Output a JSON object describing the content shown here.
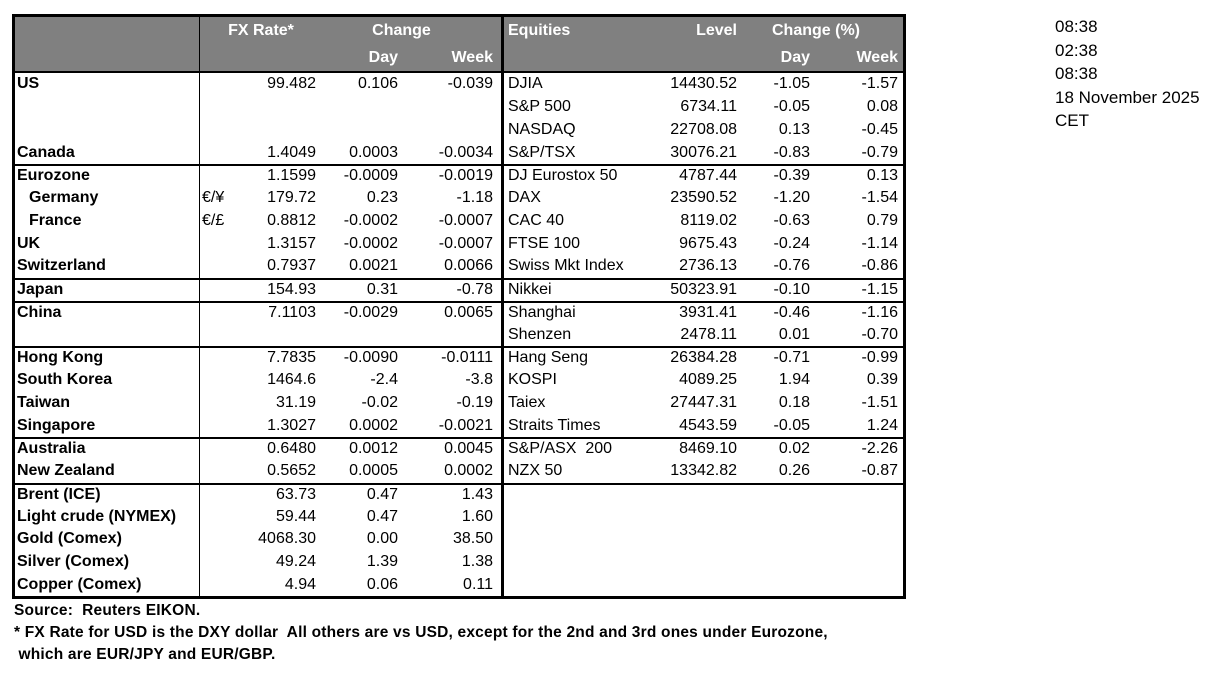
{
  "colors": {
    "header_bg": "#808080",
    "header_text": "#ffffff",
    "border": "#000000",
    "body_text": "#000000"
  },
  "header": {
    "fx_rate": "FX Rate*",
    "change": "Change",
    "day": "Day",
    "week": "Week",
    "equities": "Equities",
    "level": "Level",
    "change_pct": "Change (%)"
  },
  "rows": [
    {
      "label": "US",
      "sub": "",
      "rate": "99.482",
      "day": "0.106",
      "week": "-0.039",
      "eq": "DJIA",
      "level": "14430.52",
      "eqday": "-1.05",
      "eqweek": "-1.57"
    },
    {
      "label": "",
      "sub": "",
      "rate": "",
      "day": "",
      "week": "",
      "eq": "S&P 500",
      "level": "6734.11",
      "eqday": "-0.05",
      "eqweek": "0.08"
    },
    {
      "label": "",
      "sub": "",
      "rate": "",
      "day": "",
      "week": "",
      "eq": "NASDAQ",
      "level": "22708.08",
      "eqday": "0.13",
      "eqweek": "-0.45"
    },
    {
      "label": "Canada",
      "sub": "",
      "rate": "1.4049",
      "day": "0.0003",
      "week": "-0.0034",
      "eq": "S&P/TSX",
      "level": "30076.21",
      "eqday": "-0.83",
      "eqweek": "-0.79"
    },
    {
      "sep": true,
      "label": "Eurozone",
      "sub": "",
      "rate": "1.1599",
      "day": "-0.0009",
      "week": "-0.0019",
      "eq": "DJ Eurostox 50",
      "level": "4787.44",
      "eqday": "-0.39",
      "eqweek": "0.13"
    },
    {
      "indent": true,
      "label": "Germany",
      "sub": "€/¥",
      "rate": "179.72",
      "day": "0.23",
      "week": "-1.18",
      "eq": "DAX",
      "level": "23590.52",
      "eqday": "-1.20",
      "eqweek": "-1.54"
    },
    {
      "indent": true,
      "label": "France",
      "sub": "€/£",
      "rate": "0.8812",
      "day": "-0.0002",
      "week": "-0.0007",
      "eq": "CAC 40",
      "level": "8119.02",
      "eqday": "-0.63",
      "eqweek": "0.79"
    },
    {
      "label": "UK",
      "sub": "",
      "rate": "1.3157",
      "day": "-0.0002",
      "week": "-0.0007",
      "eq": "FTSE 100",
      "level": "9675.43",
      "eqday": "-0.24",
      "eqweek": "-1.14"
    },
    {
      "label": "Switzerland",
      "sub": "",
      "rate": "0.7937",
      "day": "0.0021",
      "week": "0.0066",
      "eq": "Swiss Mkt Index",
      "level": "2736.13",
      "eqday": "-0.76",
      "eqweek": "-0.86"
    },
    {
      "sep": true,
      "label": "Japan",
      "sub": "",
      "rate": "154.93",
      "day": "0.31",
      "week": "-0.78",
      "eq": "Nikkei",
      "level": "50323.91",
      "eqday": "-0.10",
      "eqweek": "-1.15"
    },
    {
      "sep": true,
      "label": "China",
      "sub": "",
      "rate": "7.1103",
      "day": "-0.0029",
      "week": "0.0065",
      "eq": "Shanghai",
      "level": "3931.41",
      "eqday": "-0.46",
      "eqweek": "-1.16"
    },
    {
      "label": "",
      "sub": "",
      "rate": "",
      "day": "",
      "week": "",
      "eq": "Shenzen",
      "level": "2478.11",
      "eqday": "0.01",
      "eqweek": "-0.70"
    },
    {
      "sep": true,
      "label": "Hong Kong",
      "sub": "",
      "rate": "7.7835",
      "day": "-0.0090",
      "week": "-0.0111",
      "eq": "Hang Seng",
      "level": "26384.28",
      "eqday": "-0.71",
      "eqweek": "-0.99"
    },
    {
      "label": "South Korea",
      "sub": "",
      "rate": "1464.6",
      "day": "-2.4",
      "week": "-3.8",
      "eq": "KOSPI",
      "level": "4089.25",
      "eqday": "1.94",
      "eqweek": "0.39"
    },
    {
      "label": "Taiwan",
      "sub": "",
      "rate": "31.19",
      "day": "-0.02",
      "week": "-0.19",
      "eq": "Taiex",
      "level": "27447.31",
      "eqday": "0.18",
      "eqweek": "-1.51"
    },
    {
      "label": "Singapore",
      "sub": "",
      "rate": "1.3027",
      "day": "0.0002",
      "week": "-0.0021",
      "eq": "Straits Times",
      "level": "4543.59",
      "eqday": "-0.05",
      "eqweek": "1.24"
    },
    {
      "sep": true,
      "label": "Australia",
      "sub": "",
      "rate": "0.6480",
      "day": "0.0012",
      "week": "0.0045",
      "eq": "S&P/ASX  200",
      "level": "8469.10",
      "eqday": "0.02",
      "eqweek": "-2.26"
    },
    {
      "label": "New Zealand",
      "sub": "",
      "rate": "0.5652",
      "day": "0.0005",
      "week": "0.0002",
      "eq": "NZX 50",
      "level": "13342.82",
      "eqday": "0.26",
      "eqweek": "-0.87"
    },
    {
      "sep": true,
      "label": "Brent (ICE)",
      "sub": "",
      "rate": "63.73",
      "day": "0.47",
      "week": "1.43",
      "eq": "",
      "level": "",
      "eqday": "",
      "eqweek": ""
    },
    {
      "label": "Light crude (NYMEX)",
      "sub": "",
      "rate": "59.44",
      "day": "0.47",
      "week": "1.60",
      "eq": "",
      "level": "",
      "eqday": "",
      "eqweek": ""
    },
    {
      "label": "Gold (Comex)",
      "sub": "",
      "rate": "4068.30",
      "day": "0.00",
      "week": "38.50",
      "eq": "",
      "level": "",
      "eqday": "",
      "eqweek": ""
    },
    {
      "label": "Silver (Comex)",
      "sub": "",
      "rate": "49.24",
      "day": "1.39",
      "week": "1.38",
      "eq": "",
      "level": "",
      "eqday": "",
      "eqweek": ""
    },
    {
      "label": "Copper (Comex)",
      "sub": "",
      "rate": "4.94",
      "day": "0.06",
      "week": "0.11",
      "eq": "",
      "level": "",
      "eqday": "",
      "eqweek": ""
    }
  ],
  "timestamps": {
    "lines": [
      "08:38",
      "02:38",
      "08:38",
      "18 November 2025",
      "CET"
    ]
  },
  "footnotes": [
    "Source:  Reuters EIKON.",
    "* FX Rate for USD is the DXY dollar  All others are vs USD, except for the 2nd and 3rd ones under Eurozone,",
    " which are EUR/JPY and EUR/GBP."
  ]
}
